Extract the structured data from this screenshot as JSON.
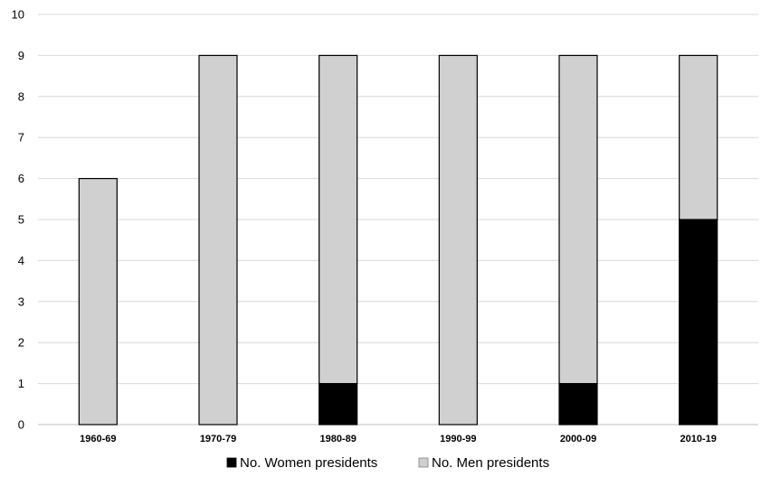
{
  "chart_data": {
    "type": "bar",
    "stacked": true,
    "title": "",
    "xlabel": "",
    "ylabel": "",
    "categories": [
      "1960-69",
      "1970-79",
      "1980-89",
      "1990-99",
      "2000-09",
      "2010-19"
    ],
    "series": [
      {
        "name": "No. Women presidents",
        "values": [
          0,
          0,
          1,
          0,
          1,
          5
        ],
        "color": "#000000"
      },
      {
        "name": "No. Men presidents",
        "values": [
          6,
          9,
          8,
          9,
          8,
          4
        ],
        "color": "#d0d0d0"
      }
    ],
    "ylim": [
      0,
      10
    ],
    "yticks": [
      0,
      1,
      2,
      3,
      4,
      5,
      6,
      7,
      8,
      9,
      10
    ],
    "grid": true,
    "legend_position": "bottom"
  }
}
